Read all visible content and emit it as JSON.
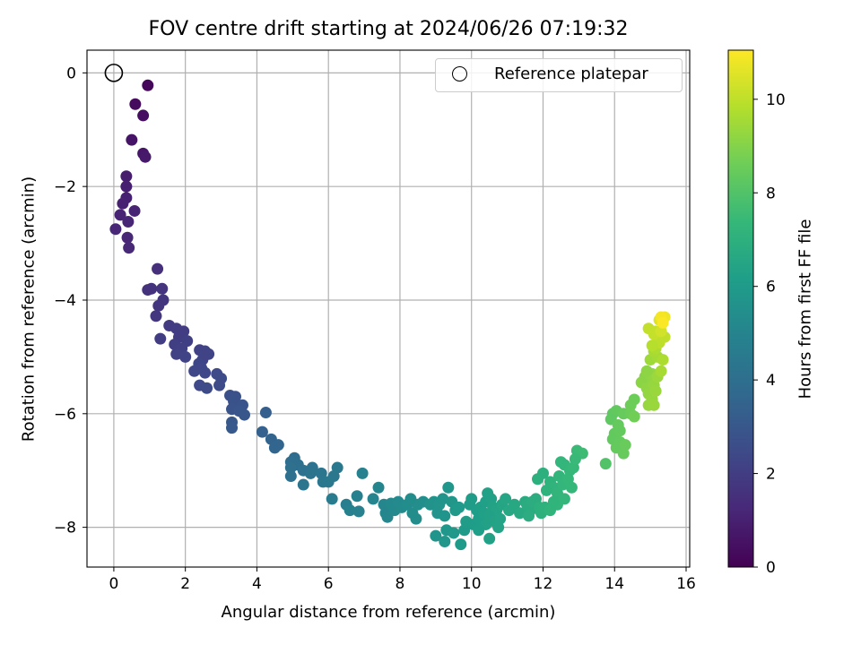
{
  "chart_data": {
    "type": "scatter",
    "title": "FOV centre drift starting at 2024/06/26 07:19:32",
    "xlabel": "Angular distance from reference (arcmin)",
    "ylabel": "Rotation from reference (arcmin)",
    "xlim": [
      -0.75,
      16.1
    ],
    "ylim": [
      -8.7,
      0.4
    ],
    "xticks": [
      0,
      2,
      4,
      6,
      8,
      10,
      12,
      14,
      16
    ],
    "xtick_labels": [
      "0",
      "2",
      "4",
      "6",
      "8",
      "10",
      "12",
      "14",
      "16"
    ],
    "yticks": [
      0,
      -2,
      -4,
      -6,
      -8
    ],
    "ytick_labels": [
      "0",
      "−2",
      "−4",
      "−6",
      "−8"
    ],
    "grid": true,
    "legend": {
      "position": "top-right",
      "entries": [
        "Reference platepar"
      ]
    },
    "colorbar": {
      "label": "Hours from first FF file",
      "colormap": "viridis",
      "range": [
        0,
        11.05
      ],
      "ticks": [
        0,
        2,
        4,
        6,
        8,
        10
      ],
      "tick_labels": [
        "0",
        "2",
        "4",
        "6",
        "8",
        "10"
      ]
    },
    "reference_point": {
      "x": 0,
      "y": 0
    },
    "series": [
      {
        "points": [
          [
            0.95,
            -0.22,
            0.2
          ],
          [
            0.6,
            -0.55,
            0.3
          ],
          [
            0.82,
            -0.75,
            0.4
          ],
          [
            0.5,
            -1.18,
            0.6
          ],
          [
            0.82,
            -1.42,
            0.7
          ],
          [
            0.88,
            -1.48,
            0.75
          ],
          [
            0.35,
            -1.82,
            0.9
          ],
          [
            0.35,
            -2.0,
            0.95
          ],
          [
            0.35,
            -2.2,
            1.0
          ],
          [
            0.25,
            -2.3,
            1.05
          ],
          [
            0.58,
            -2.43,
            1.1
          ],
          [
            0.18,
            -2.5,
            1.1
          ],
          [
            0.4,
            -2.62,
            1.15
          ],
          [
            0.05,
            -2.75,
            1.2
          ],
          [
            0.38,
            -2.9,
            1.2
          ],
          [
            0.42,
            -3.08,
            1.25
          ],
          [
            1.22,
            -3.45,
            1.5
          ],
          [
            0.95,
            -3.82,
            1.6
          ],
          [
            1.05,
            -3.8,
            1.6
          ],
          [
            1.35,
            -3.8,
            1.65
          ],
          [
            1.38,
            -4.0,
            1.7
          ],
          [
            1.25,
            -4.1,
            1.7
          ],
          [
            1.18,
            -4.28,
            1.75
          ],
          [
            1.55,
            -4.45,
            1.9
          ],
          [
            1.75,
            -4.5,
            1.95
          ],
          [
            1.95,
            -4.55,
            2.0
          ],
          [
            1.82,
            -4.65,
            2.0
          ],
          [
            1.3,
            -4.68,
            2.0
          ],
          [
            2.05,
            -4.72,
            2.05
          ],
          [
            1.7,
            -4.78,
            2.05
          ],
          [
            1.9,
            -4.85,
            2.1
          ],
          [
            2.4,
            -4.88,
            2.15
          ],
          [
            2.55,
            -4.9,
            2.2
          ],
          [
            2.65,
            -4.95,
            2.2
          ],
          [
            1.75,
            -4.95,
            2.15
          ],
          [
            2.0,
            -5.0,
            2.2
          ],
          [
            2.48,
            -5.05,
            2.25
          ],
          [
            2.38,
            -5.12,
            2.3
          ],
          [
            2.25,
            -5.25,
            2.35
          ],
          [
            2.45,
            -5.2,
            2.35
          ],
          [
            2.55,
            -5.28,
            2.4
          ],
          [
            2.88,
            -5.3,
            2.45
          ],
          [
            3.0,
            -5.38,
            2.5
          ],
          [
            2.4,
            -5.5,
            2.45
          ],
          [
            2.6,
            -5.55,
            2.5
          ],
          [
            2.95,
            -5.5,
            2.55
          ],
          [
            3.25,
            -5.68,
            2.7
          ],
          [
            3.4,
            -5.7,
            2.75
          ],
          [
            3.35,
            -5.78,
            2.8
          ],
          [
            3.6,
            -5.85,
            2.85
          ],
          [
            3.3,
            -5.92,
            2.85
          ],
          [
            3.5,
            -5.95,
            2.9
          ],
          [
            3.65,
            -6.02,
            2.95
          ],
          [
            3.3,
            -6.15,
            3.0
          ],
          [
            3.3,
            -6.25,
            3.05
          ],
          [
            4.25,
            -5.98,
            3.3
          ],
          [
            4.15,
            -6.32,
            3.4
          ],
          [
            4.4,
            -6.45,
            3.5
          ],
          [
            4.6,
            -6.55,
            3.6
          ],
          [
            4.5,
            -6.6,
            3.6
          ],
          [
            5.05,
            -6.78,
            3.9
          ],
          [
            4.95,
            -6.85,
            3.95
          ],
          [
            5.15,
            -6.9,
            4.0
          ],
          [
            4.95,
            -6.95,
            4.05
          ],
          [
            5.3,
            -7.0,
            4.1
          ],
          [
            5.55,
            -6.95,
            4.15
          ],
          [
            5.5,
            -7.05,
            4.2
          ],
          [
            4.95,
            -7.1,
            4.1
          ],
          [
            5.8,
            -7.05,
            4.3
          ],
          [
            6.15,
            -7.1,
            4.4
          ],
          [
            6.25,
            -6.95,
            4.45
          ],
          [
            5.85,
            -7.2,
            4.4
          ],
          [
            6.0,
            -7.2,
            4.45
          ],
          [
            5.3,
            -7.25,
            4.3
          ],
          [
            6.1,
            -7.5,
            4.6
          ],
          [
            6.5,
            -7.6,
            4.7
          ],
          [
            6.8,
            -7.45,
            4.8
          ],
          [
            6.6,
            -7.7,
            4.8
          ],
          [
            6.85,
            -7.72,
            4.85
          ],
          [
            6.95,
            -7.05,
            4.85
          ],
          [
            7.25,
            -7.5,
            5.0
          ],
          [
            7.4,
            -7.3,
            5.05
          ],
          [
            7.55,
            -7.6,
            5.1
          ],
          [
            7.6,
            -7.75,
            5.1
          ],
          [
            7.65,
            -7.82,
            5.15
          ],
          [
            7.85,
            -7.7,
            5.2
          ],
          [
            7.75,
            -7.58,
            5.2
          ],
          [
            7.95,
            -7.55,
            5.25
          ],
          [
            8.05,
            -7.65,
            5.3
          ],
          [
            8.2,
            -7.6,
            5.35
          ],
          [
            8.35,
            -7.75,
            5.4
          ],
          [
            8.45,
            -7.85,
            5.4
          ],
          [
            8.5,
            -7.6,
            5.45
          ],
          [
            8.65,
            -7.55,
            5.5
          ],
          [
            8.3,
            -7.5,
            5.4
          ],
          [
            8.85,
            -7.6,
            5.6
          ],
          [
            8.95,
            -7.55,
            5.65
          ],
          [
            9.1,
            -7.6,
            5.7
          ],
          [
            9.2,
            -7.5,
            5.75
          ],
          [
            9.35,
            -7.3,
            5.8
          ],
          [
            9.45,
            -7.55,
            5.85
          ],
          [
            9.05,
            -7.75,
            5.7
          ],
          [
            9.25,
            -7.8,
            5.75
          ],
          [
            9.55,
            -7.7,
            5.9
          ],
          [
            9.65,
            -7.65,
            5.95
          ],
          [
            9.0,
            -8.15,
            5.75
          ],
          [
            9.25,
            -8.25,
            5.8
          ],
          [
            9.7,
            -8.3,
            6.0
          ],
          [
            9.3,
            -8.05,
            5.8
          ],
          [
            9.5,
            -8.1,
            5.9
          ],
          [
            9.8,
            -8.05,
            6.0
          ],
          [
            9.95,
            -7.6,
            6.05
          ],
          [
            10.0,
            -7.5,
            6.1
          ],
          [
            10.15,
            -7.7,
            6.15
          ],
          [
            10.25,
            -7.65,
            6.2
          ],
          [
            9.85,
            -7.9,
            6.05
          ],
          [
            10.05,
            -7.95,
            6.1
          ],
          [
            10.2,
            -7.85,
            6.15
          ],
          [
            10.4,
            -7.55,
            6.25
          ],
          [
            10.45,
            -7.4,
            6.3
          ],
          [
            10.55,
            -7.5,
            6.3
          ],
          [
            10.35,
            -7.75,
            6.25
          ],
          [
            10.6,
            -7.65,
            6.35
          ],
          [
            10.7,
            -7.7,
            6.4
          ],
          [
            10.5,
            -7.8,
            6.3
          ],
          [
            10.65,
            -7.9,
            6.35
          ],
          [
            10.8,
            -7.85,
            6.4
          ],
          [
            10.4,
            -7.95,
            6.3
          ],
          [
            10.75,
            -8.0,
            6.4
          ],
          [
            10.2,
            -8.05,
            6.2
          ],
          [
            10.5,
            -8.2,
            6.3
          ],
          [
            10.85,
            -7.6,
            6.5
          ],
          [
            10.95,
            -7.5,
            6.55
          ],
          [
            11.05,
            -7.7,
            6.6
          ],
          [
            11.2,
            -7.6,
            6.65
          ],
          [
            11.35,
            -7.75,
            6.7
          ],
          [
            11.5,
            -7.55,
            6.75
          ],
          [
            11.65,
            -7.7,
            6.8
          ],
          [
            11.55,
            -7.6,
            6.8
          ],
          [
            11.7,
            -7.55,
            6.85
          ],
          [
            11.8,
            -7.5,
            6.9
          ],
          [
            11.9,
            -7.65,
            6.95
          ],
          [
            11.6,
            -7.8,
            6.85
          ],
          [
            11.95,
            -7.75,
            7.0
          ],
          [
            12.05,
            -7.65,
            7.05
          ],
          [
            11.85,
            -7.15,
            6.95
          ],
          [
            12.0,
            -7.05,
            7.0
          ],
          [
            12.2,
            -7.2,
            7.1
          ],
          [
            12.3,
            -7.3,
            7.15
          ],
          [
            12.1,
            -7.35,
            7.1
          ],
          [
            12.4,
            -7.4,
            7.2
          ],
          [
            12.45,
            -7.1,
            7.2
          ],
          [
            12.55,
            -7.25,
            7.25
          ],
          [
            12.6,
            -6.9,
            7.3
          ],
          [
            12.75,
            -7.0,
            7.35
          ],
          [
            12.5,
            -6.85,
            7.25
          ],
          [
            12.85,
            -6.95,
            7.4
          ],
          [
            12.4,
            -7.6,
            7.2
          ],
          [
            12.3,
            -7.55,
            7.15
          ],
          [
            12.6,
            -7.5,
            7.25
          ],
          [
            12.8,
            -7.3,
            7.35
          ],
          [
            12.95,
            -6.65,
            7.5
          ],
          [
            13.1,
            -6.7,
            7.55
          ],
          [
            12.9,
            -6.8,
            7.45
          ],
          [
            12.7,
            -7.15,
            7.35
          ],
          [
            12.2,
            -7.7,
            7.15
          ],
          [
            13.75,
            -6.88,
            8.0
          ],
          [
            13.95,
            -6.0,
            8.3
          ],
          [
            14.05,
            -5.95,
            8.35
          ],
          [
            13.9,
            -6.1,
            8.3
          ],
          [
            14.1,
            -6.2,
            8.4
          ],
          [
            14.25,
            -6.0,
            8.45
          ],
          [
            14.0,
            -6.35,
            8.35
          ],
          [
            13.95,
            -6.45,
            8.35
          ],
          [
            14.15,
            -6.5,
            8.4
          ],
          [
            14.05,
            -6.6,
            8.4
          ],
          [
            14.25,
            -6.7,
            8.45
          ],
          [
            14.3,
            -6.55,
            8.5
          ],
          [
            14.45,
            -6.0,
            8.55
          ],
          [
            14.55,
            -5.75,
            8.6
          ],
          [
            14.45,
            -5.85,
            8.6
          ],
          [
            14.55,
            -6.05,
            8.65
          ],
          [
            14.15,
            -6.3,
            8.4
          ],
          [
            14.85,
            -5.35,
            9.1
          ],
          [
            14.95,
            -5.45,
            9.2
          ],
          [
            15.05,
            -5.3,
            9.25
          ],
          [
            14.75,
            -5.45,
            9.1
          ],
          [
            14.9,
            -5.55,
            9.2
          ],
          [
            15.1,
            -5.5,
            9.3
          ],
          [
            14.95,
            -5.65,
            9.25
          ],
          [
            15.05,
            -5.75,
            9.3
          ],
          [
            14.95,
            -5.85,
            9.3
          ],
          [
            15.1,
            -5.85,
            9.35
          ],
          [
            15.15,
            -5.6,
            9.35
          ],
          [
            15.2,
            -5.35,
            9.4
          ],
          [
            14.9,
            -5.25,
            9.15
          ],
          [
            15.0,
            -5.05,
            9.45
          ],
          [
            15.2,
            -5.0,
            9.55
          ],
          [
            15.1,
            -4.9,
            9.6
          ],
          [
            15.35,
            -5.05,
            9.7
          ],
          [
            15.3,
            -5.25,
            9.6
          ],
          [
            15.15,
            -4.85,
            9.7
          ],
          [
            15.2,
            -4.65,
            9.9
          ],
          [
            15.25,
            -4.75,
            9.95
          ],
          [
            15.05,
            -4.8,
            9.85
          ],
          [
            15.4,
            -4.65,
            10.0
          ],
          [
            15.15,
            -4.55,
            10.1
          ],
          [
            14.95,
            -4.5,
            10.05
          ],
          [
            15.1,
            -4.6,
            10.1
          ],
          [
            15.3,
            -4.55,
            10.3
          ],
          [
            15.25,
            -4.35,
            10.5
          ],
          [
            15.4,
            -4.3,
            10.8
          ],
          [
            15.3,
            -4.3,
            10.9
          ],
          [
            15.35,
            -4.4,
            11.0
          ]
        ]
      }
    ]
  }
}
